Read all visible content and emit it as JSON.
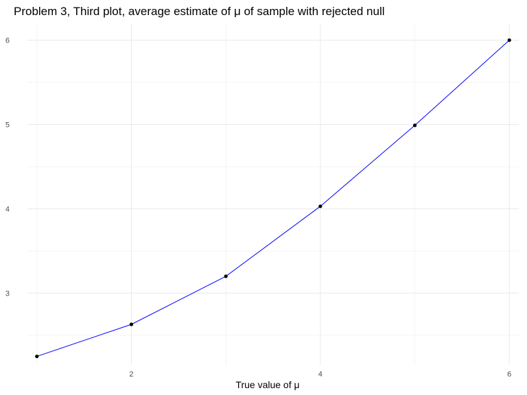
{
  "chart_data": {
    "type": "line",
    "title": "Problem 3, Third plot, average estimate of μ of sample with rejected null",
    "xlabel": "True value of μ",
    "ylabel": "",
    "x": [
      1,
      2,
      3,
      4,
      5,
      6
    ],
    "series": [
      {
        "values": [
          2.25,
          2.63,
          3.2,
          4.03,
          4.99,
          6.0
        ]
      }
    ],
    "xlim": [
      0.9,
      6.1
    ],
    "ylim": [
      2.15,
      6.2
    ],
    "x_ticks": [
      2,
      4,
      6
    ],
    "x_tick_labels": [
      "2",
      "4",
      "6"
    ],
    "x_minor_gridlines": [
      1,
      3,
      5
    ],
    "y_ticks": [
      3,
      4,
      5,
      6
    ],
    "y_tick_labels": [
      "3",
      "4",
      "5",
      "6"
    ],
    "y_minor_gridlines": [
      2.5,
      3.5,
      4.5,
      5.5
    ],
    "grid": true,
    "legend": "none",
    "line_color": "#0000ff",
    "point_color": "#000000",
    "grid_color": "#ebebeb",
    "background": "#ffffff"
  }
}
